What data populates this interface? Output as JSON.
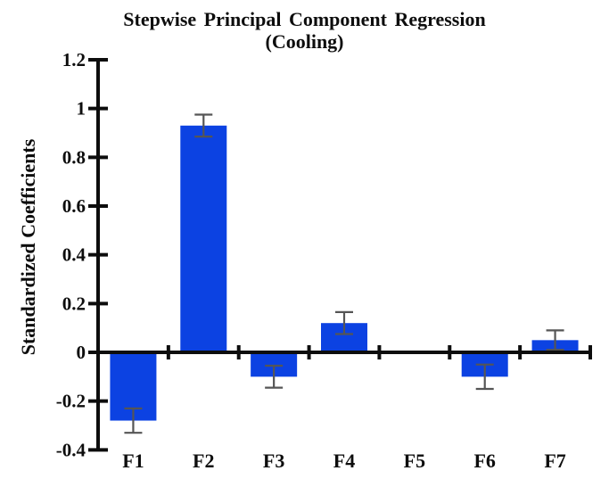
{
  "figure": {
    "background": "#ffffff"
  },
  "chart_data": {
    "type": "bar",
    "title": "Stepwise Principal Component Regression",
    "subtitle": "(Cooling)",
    "xlabel": "",
    "ylabel": "Standardized Coefficients",
    "categories": [
      "F1",
      "F2",
      "F3",
      "F4",
      "F5",
      "F6",
      "F7"
    ],
    "values": [
      -0.28,
      0.93,
      -0.1,
      0.12,
      0,
      -0.1,
      0.05
    ],
    "errors": [
      0.05,
      0.045,
      0.045,
      0.045,
      null,
      0.05,
      0.04
    ],
    "ylim": [
      -0.4,
      1.2
    ],
    "ytick_step": 0.2,
    "ytick_labels": [
      "-0.4",
      "-0.2",
      "0",
      "0.2",
      "0.4",
      "0.6",
      "0.8",
      "1",
      "1.2"
    ],
    "grid": false,
    "legend": null,
    "bar_color": "#0c42e2",
    "error_color": "#555555",
    "axis_color": "#0d0d0d",
    "text_color": "#0d0d0d"
  }
}
